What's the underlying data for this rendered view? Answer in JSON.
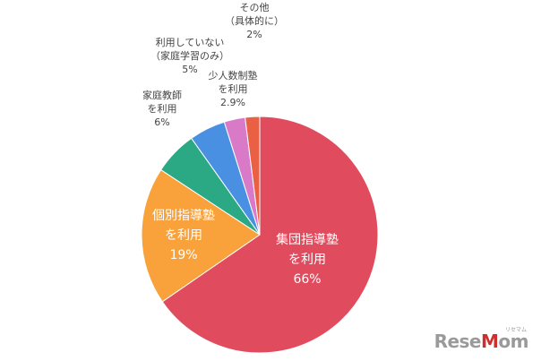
{
  "chart_data": {
    "type": "pie",
    "start_angle_deg": 0,
    "direction": "clockwise",
    "slices": [
      {
        "key": "shudan",
        "label_lines": [
          "集団指導塾",
          "を利用",
          "66%"
        ],
        "value": 66,
        "color": "#e04b5d",
        "label_position": "inside"
      },
      {
        "key": "kobetsu",
        "label_lines": [
          "個別指導塾",
          "を利用",
          "19%"
        ],
        "value": 19,
        "color": "#f9a23b",
        "label_position": "inside"
      },
      {
        "key": "katei",
        "label_lines": [
          "家庭教師",
          "を利用",
          "6%"
        ],
        "value": 6,
        "color": "#2ba884",
        "label_position": "outside"
      },
      {
        "key": "notused",
        "label_lines": [
          "利用していない",
          "（家庭学習のみ）",
          "5%"
        ],
        "value": 5,
        "color": "#4a90e2",
        "label_position": "outside"
      },
      {
        "key": "shoninzu",
        "label_lines": [
          "少人数制塾",
          "を利用",
          "2.9%"
        ],
        "value": 2.9,
        "color": "#d97ac8",
        "label_position": "outside"
      },
      {
        "key": "other",
        "label_lines": [
          "その他",
          "（具体的に）",
          "2%"
        ],
        "value": 2,
        "color": "#ea6045",
        "label_position": "outside"
      }
    ]
  },
  "watermark": {
    "brand_prefix": "Rese",
    "brand_accent": "M",
    "brand_suffix": "om",
    "ruby": "リセマム"
  }
}
